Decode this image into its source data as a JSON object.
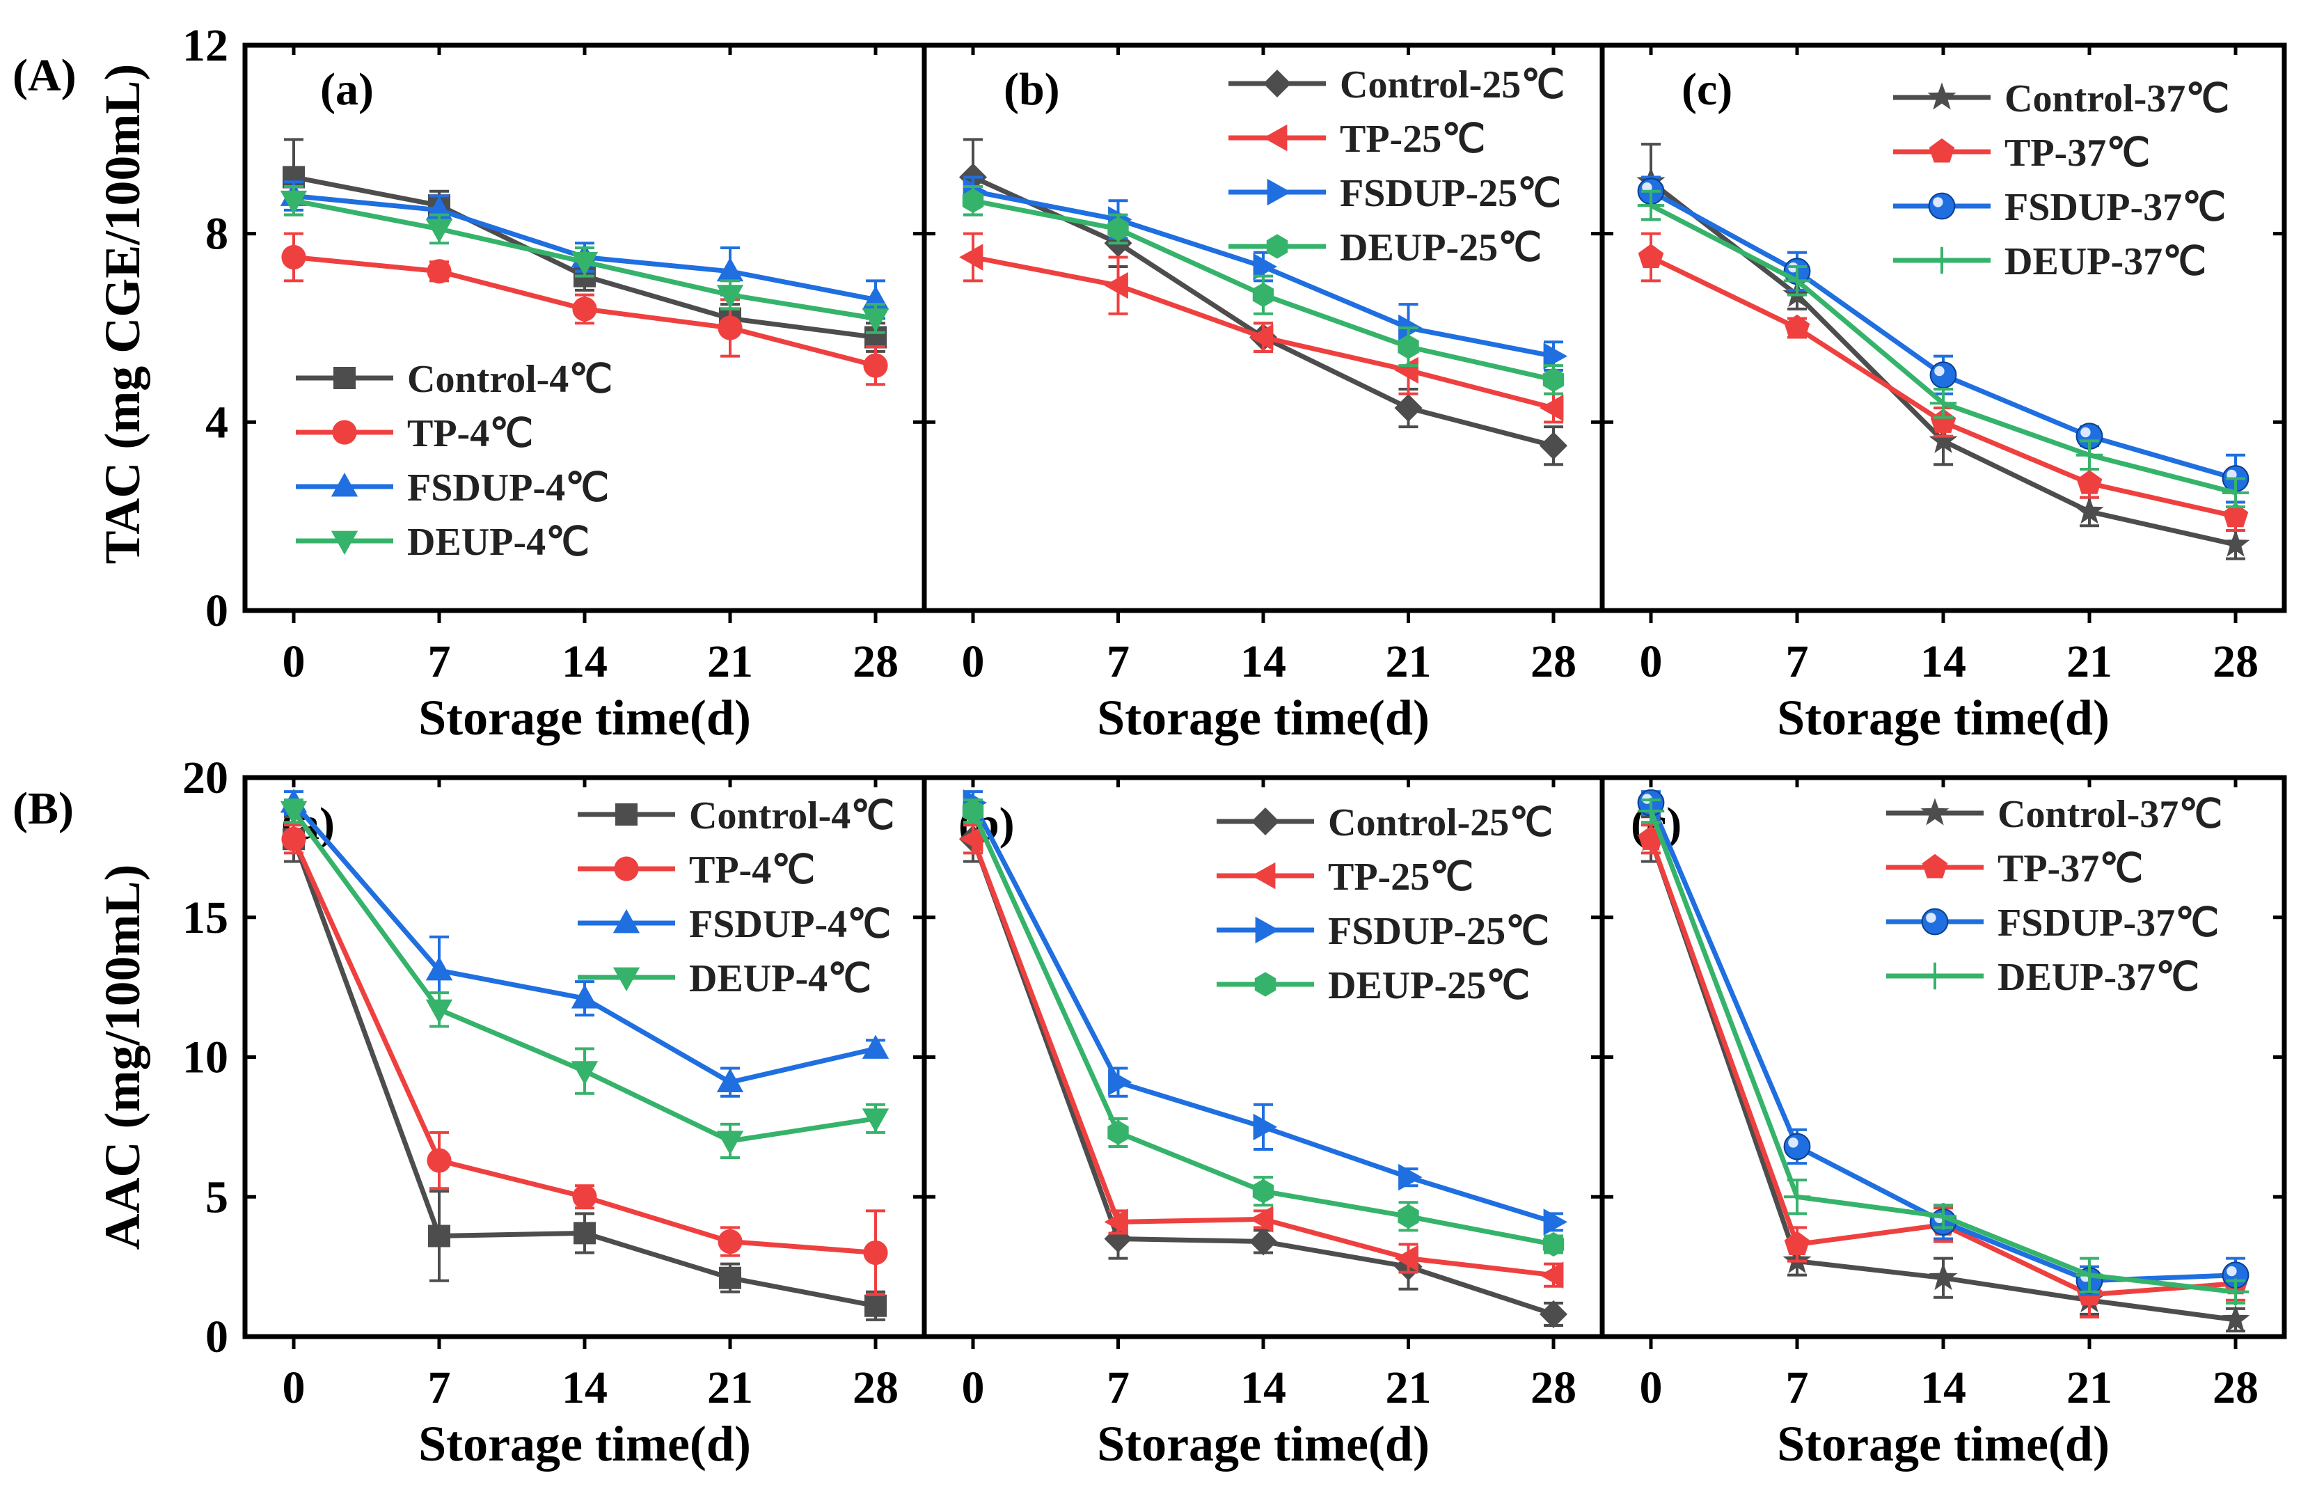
{
  "figure": {
    "row_labels": [
      "(A)",
      "(B)"
    ],
    "x_title": "Storage time(d)",
    "panel_labels": [
      "(a)",
      "(b)",
      "(c)"
    ]
  },
  "chart_data": [
    {
      "type": "line",
      "row": "A",
      "panel": "(a)",
      "ylabel": "TAC (mg CGE/100mL)",
      "x": [
        0,
        7,
        14,
        21,
        28
      ],
      "xticks": [
        "0",
        "7",
        "14",
        "21",
        "28"
      ],
      "ylim": [
        0,
        12
      ],
      "yticks": [
        0,
        4,
        8,
        12
      ],
      "legend_position": "middle-left",
      "series": [
        {
          "name": "Control-4℃",
          "color": "#4d4d4d",
          "marker": "square",
          "values": [
            9.2,
            8.6,
            7.1,
            6.2,
            5.8
          ],
          "errors": [
            0.8,
            0.3,
            0.3,
            0.3,
            0.3
          ]
        },
        {
          "name": "TP-4℃",
          "color": "#ef4040",
          "marker": "circle",
          "values": [
            7.5,
            7.2,
            6.4,
            6.0,
            5.2
          ],
          "errors": [
            0.5,
            0.2,
            0.3,
            0.6,
            0.4
          ]
        },
        {
          "name": "FSDUP-4℃",
          "color": "#1f6fe0",
          "marker": "triangle-up",
          "values": [
            8.8,
            8.5,
            7.5,
            7.2,
            6.6
          ],
          "errors": [
            0.3,
            0.3,
            0.3,
            0.5,
            0.4
          ]
        },
        {
          "name": "DEUP-4℃",
          "color": "#36b36a",
          "marker": "triangle-down",
          "values": [
            8.7,
            8.1,
            7.4,
            6.7,
            6.2
          ],
          "errors": [
            0.3,
            0.3,
            0.3,
            0.3,
            0.3
          ]
        }
      ]
    },
    {
      "type": "line",
      "row": "A",
      "panel": "(b)",
      "ylabel": "",
      "x": [
        0,
        7,
        14,
        21,
        28
      ],
      "xticks": [
        "0",
        "7",
        "14",
        "21",
        "28"
      ],
      "ylim": [
        0,
        12
      ],
      "yticks": [
        0,
        4,
        8,
        12
      ],
      "legend_position": "top-right",
      "series": [
        {
          "name": "Control-25℃",
          "color": "#4d4d4d",
          "marker": "diamond",
          "values": [
            9.2,
            7.8,
            5.8,
            4.3,
            3.5
          ],
          "errors": [
            0.8,
            0.5,
            0.3,
            0.4,
            0.4
          ]
        },
        {
          "name": "TP-25℃",
          "color": "#ef4040",
          "marker": "triangle-left",
          "values": [
            7.5,
            6.9,
            5.8,
            5.1,
            4.3
          ],
          "errors": [
            0.5,
            0.6,
            0.3,
            0.5,
            0.3
          ]
        },
        {
          "name": "FSDUP-25℃",
          "color": "#1f6fe0",
          "marker": "triangle-right",
          "values": [
            8.9,
            8.3,
            7.3,
            6.0,
            5.4
          ],
          "errors": [
            0.3,
            0.4,
            0.3,
            0.5,
            0.3
          ]
        },
        {
          "name": "DEUP-25℃",
          "color": "#36b36a",
          "marker": "hexagon",
          "values": [
            8.7,
            8.1,
            6.7,
            5.6,
            4.9
          ],
          "errors": [
            0.3,
            0.3,
            0.4,
            0.4,
            0.3
          ]
        }
      ]
    },
    {
      "type": "line",
      "row": "A",
      "panel": "(c)",
      "ylabel": "",
      "x": [
        0,
        7,
        14,
        21,
        28
      ],
      "xticks": [
        "0",
        "7",
        "14",
        "21",
        "28"
      ],
      "ylim": [
        0,
        12
      ],
      "yticks": [
        0,
        4,
        8,
        12
      ],
      "legend_position": "top-right",
      "series": [
        {
          "name": "Control-37℃",
          "color": "#4d4d4d",
          "marker": "star",
          "values": [
            9.1,
            6.7,
            3.6,
            2.1,
            1.4
          ],
          "errors": [
            0.8,
            0.3,
            0.5,
            0.3,
            0.3
          ]
        },
        {
          "name": "TP-37℃",
          "color": "#ef4040",
          "marker": "pentagon",
          "values": [
            7.5,
            6.0,
            4.0,
            2.7,
            2.0
          ],
          "errors": [
            0.5,
            0.2,
            0.3,
            0.3,
            0.3
          ]
        },
        {
          "name": "FSDUP-37℃",
          "color": "#1f6fe0",
          "marker": "sphere",
          "values": [
            8.9,
            7.2,
            5.0,
            3.7,
            2.8
          ],
          "errors": [
            0.3,
            0.4,
            0.4,
            0.2,
            0.5
          ]
        },
        {
          "name": "DEUP-37℃",
          "color": "#36b36a",
          "marker": "plus",
          "values": [
            8.6,
            7.0,
            4.4,
            3.3,
            2.5
          ],
          "errors": [
            0.3,
            0.3,
            0.3,
            0.3,
            0.3
          ]
        }
      ]
    },
    {
      "type": "line",
      "row": "B",
      "panel": "(a)",
      "ylabel": "AAC (mg/100mL)",
      "x": [
        0,
        7,
        14,
        21,
        28
      ],
      "xticks": [
        "0",
        "7",
        "14",
        "21",
        "28"
      ],
      "ylim": [
        0,
        20
      ],
      "yticks": [
        0,
        5,
        10,
        15,
        20
      ],
      "legend_position": "top-right",
      "series": [
        {
          "name": "Control-4℃",
          "color": "#4d4d4d",
          "marker": "square",
          "values": [
            17.8,
            3.6,
            3.7,
            2.1,
            1.1
          ],
          "errors": [
            0.8,
            1.6,
            0.7,
            0.5,
            0.5
          ]
        },
        {
          "name": "TP-4℃",
          "color": "#ef4040",
          "marker": "circle",
          "values": [
            17.8,
            6.3,
            5.0,
            3.4,
            3.0
          ],
          "errors": [
            0.5,
            1.0,
            0.4,
            0.5,
            1.5
          ]
        },
        {
          "name": "FSDUP-4℃",
          "color": "#1f6fe0",
          "marker": "triangle-up",
          "values": [
            19.1,
            13.1,
            12.1,
            9.1,
            10.3
          ],
          "errors": [
            0.4,
            1.2,
            0.6,
            0.5,
            0.3
          ]
        },
        {
          "name": "DEUP-4℃",
          "color": "#36b36a",
          "marker": "triangle-down",
          "values": [
            18.8,
            11.7,
            9.5,
            7.0,
            7.8
          ],
          "errors": [
            0.4,
            0.6,
            0.8,
            0.6,
            0.5
          ]
        }
      ]
    },
    {
      "type": "line",
      "row": "B",
      "panel": "(b)",
      "ylabel": "",
      "x": [
        0,
        7,
        14,
        21,
        28
      ],
      "xticks": [
        "0",
        "7",
        "14",
        "21",
        "28"
      ],
      "ylim": [
        0,
        20
      ],
      "yticks": [
        0,
        5,
        10,
        15,
        20
      ],
      "legend_position": "top-right",
      "series": [
        {
          "name": "Control-25℃",
          "color": "#4d4d4d",
          "marker": "diamond",
          "values": [
            17.8,
            3.5,
            3.4,
            2.5,
            0.8
          ],
          "errors": [
            0.8,
            0.7,
            0.4,
            0.8,
            0.4
          ]
        },
        {
          "name": "TP-25℃",
          "color": "#ef4040",
          "marker": "triangle-left",
          "values": [
            17.8,
            4.1,
            4.2,
            2.8,
            2.2
          ],
          "errors": [
            0.5,
            0.4,
            0.3,
            0.5,
            0.4
          ]
        },
        {
          "name": "FSDUP-25℃",
          "color": "#1f6fe0",
          "marker": "triangle-right",
          "values": [
            19.1,
            9.1,
            7.5,
            5.7,
            4.1
          ],
          "errors": [
            0.4,
            0.5,
            0.8,
            0.3,
            0.3
          ]
        },
        {
          "name": "DEUP-25℃",
          "color": "#36b36a",
          "marker": "hexagon",
          "values": [
            18.8,
            7.3,
            5.2,
            4.3,
            3.3
          ],
          "errors": [
            0.4,
            0.5,
            0.5,
            0.5,
            0.3
          ]
        }
      ]
    },
    {
      "type": "line",
      "row": "B",
      "panel": "(c)",
      "ylabel": "",
      "x": [
        0,
        7,
        14,
        21,
        28
      ],
      "xticks": [
        "0",
        "7",
        "14",
        "21",
        "28"
      ],
      "ylim": [
        0,
        20
      ],
      "yticks": [
        0,
        5,
        10,
        15,
        20
      ],
      "legend_position": "top-right",
      "series": [
        {
          "name": "Control-37℃",
          "color": "#4d4d4d",
          "marker": "star",
          "values": [
            17.8,
            2.7,
            2.1,
            1.3,
            0.6
          ],
          "errors": [
            0.8,
            0.5,
            0.7,
            0.5,
            0.4
          ]
        },
        {
          "name": "TP-37℃",
          "color": "#ef4040",
          "marker": "pentagon",
          "values": [
            17.8,
            3.3,
            4.0,
            1.5,
            1.9
          ],
          "errors": [
            0.5,
            0.6,
            0.6,
            0.8,
            0.6
          ]
        },
        {
          "name": "FSDUP-37℃",
          "color": "#1f6fe0",
          "marker": "sphere",
          "values": [
            19.1,
            6.8,
            4.1,
            2.0,
            2.2
          ],
          "errors": [
            0.4,
            0.6,
            0.6,
            0.5,
            0.6
          ]
        },
        {
          "name": "DEUP-37℃",
          "color": "#36b36a",
          "marker": "plus",
          "values": [
            18.8,
            5.0,
            4.3,
            2.2,
            1.6
          ],
          "errors": [
            0.4,
            0.6,
            0.4,
            0.6,
            0.4
          ]
        }
      ]
    }
  ]
}
